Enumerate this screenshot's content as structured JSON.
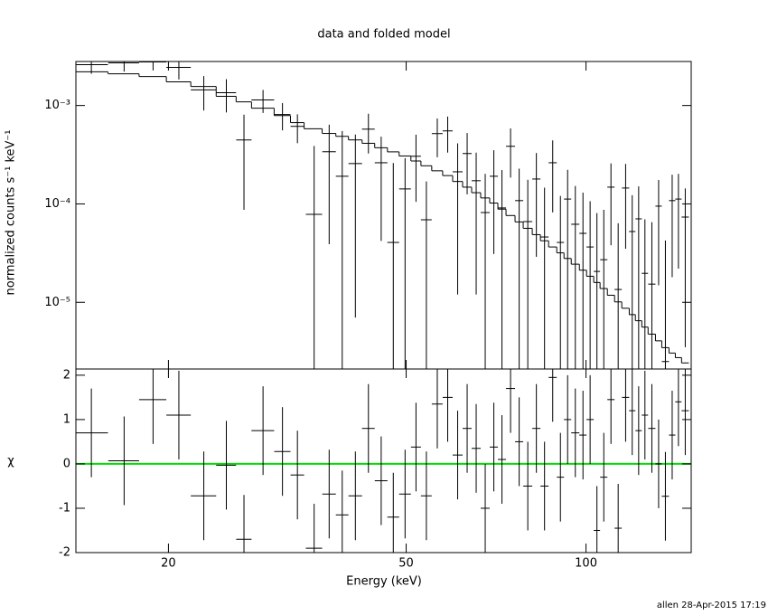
{
  "chart_data": [
    {
      "type": "errorbar",
      "title": "data and folded model",
      "ylabel": "normalized counts s⁻¹ keV⁻¹",
      "xscale": "log",
      "yscale": "log",
      "xlim": [
        14,
        150
      ],
      "ylim": [
        2.1e-06,
        0.0028
      ],
      "yticks": [
        {
          "value": 0.001,
          "label": "10⁻³"
        },
        {
          "value": 0.0001,
          "label": "10⁻⁴"
        },
        {
          "value": 1e-05,
          "label": "10⁻⁵"
        }
      ],
      "color": "#000000",
      "model_color": "#000000",
      "x": [
        14.86,
        16.86,
        18.85,
        20.82,
        22.92,
        25.0,
        26.76,
        28.8,
        31.04,
        32.88,
        35.07,
        37.16,
        39.08,
        41.11,
        43.23,
        45.41,
        47.58,
        49.79,
        51.93,
        54.05,
        56.37,
        58.68,
        60.98,
        63.25,
        65.49,
        67.81,
        70.1,
        72.33,
        74.77,
        77.29,
        79.9,
        82.59,
        85.23,
        87.96,
        90.61,
        93.16,
        95.97,
        98.84,
        101.6,
        104.3,
        107.1,
        110.1,
        113.2,
        116.5,
        119.5,
        122.5,
        125.5,
        128.9,
        132.3,
        135.8,
        139.4,
        142.8,
        146.6
      ],
      "xerr": [
        0.98,
        1.0,
        0.99,
        0.98,
        1.12,
        0.96,
        0.79,
        1.26,
        0.97,
        0.86,
        1.1,
        0.97,
        0.95,
        1.08,
        1.06,
        1.11,
        1.08,
        1.13,
        1.0,
        1.13,
        1.18,
        1.13,
        1.17,
        1.1,
        1.14,
        1.18,
        1.1,
        1.14,
        1.3,
        1.21,
        1.39,
        1.3,
        1.34,
        1.38,
        1.26,
        1.3,
        1.51,
        1.38,
        1.42,
        1.27,
        1.49,
        1.54,
        1.58,
        1.63,
        1.46,
        1.5,
        1.53,
        1.8,
        1.62,
        1.9,
        1.7,
        1.74,
        2.05
      ],
      "values": [
        0.0026,
        0.00271,
        0.00277,
        0.00244,
        0.00144,
        0.00135,
        0.000447,
        0.00114,
        0.000809,
        0.000614,
        7.83e-05,
        0.000339,
        0.000191,
        0.000257,
        0.000575,
        0.000262,
        4.06e-05,
        0.000142,
        0.000305,
        6.9e-05,
        0.000518,
        0.000552,
        0.000212,
        0.000325,
        0.000172,
        8.17e-05,
        0.000191,
        9.1e-05,
        0.000385,
        0.000108,
        6.61e-05,
        0.000179,
        4.61e-05,
        0.000262,
        4.06e-05,
        0.000112,
        6.21e-05,
        5.02e-05,
        3.65e-05,
        2.06e-05,
        2.71e-05,
        0.000148,
        1.35e-05,
        0.000145,
        5.24e-05,
        7.05e-05,
        1.97e-05,
        1.53e-05,
        9.49e-05,
        2.5e-06,
        0.000108,
        0.000112,
        7.35e-05
      ],
      "yerr": [
        0.0005,
        0.0005,
        0.0005,
        0.0006,
        0.00055,
        0.0005,
        0.00036,
        0.0003,
        0.00025,
        0.0002,
        0.00031,
        0.0003,
        0.00036,
        0.00025,
        0.00025,
        0.00022,
        0.00022,
        0.00015,
        0.0002,
        0.0001,
        0.00022,
        0.00022,
        0.0002,
        0.0002,
        0.00016,
        0.00012,
        0.00016,
        0.00013,
        0.0002,
        0.00012,
        0.00011,
        0.00015,
        0.0001,
        0.00018,
        8e-05,
        0.00011,
        9e-05,
        8e-05,
        7e-05,
        6e-05,
        6e-05,
        0.00011,
        5e-05,
        0.00011,
        7e-05,
        8e-05,
        5e-05,
        5e-05,
        8e-05,
        4e-05,
        9e-05,
        9e-05,
        7e-05
      ],
      "model": [
        0.0022,
        0.0021,
        0.00197,
        0.00174,
        0.00156,
        0.00124,
        0.00109,
        0.00094,
        0.00079,
        0.00067,
        0.00058,
        0.00052,
        0.000486,
        0.000447,
        0.000413,
        0.000372,
        0.000338,
        0.000307,
        0.000273,
        0.000244,
        0.000217,
        0.000194,
        0.000169,
        0.000148,
        0.00013,
        0.000115,
        0.000102,
        8.85e-05,
        7.62e-05,
        6.56e-05,
        5.65e-05,
        4.87e-05,
        4.22e-05,
        3.65e-05,
        3.18e-05,
        2.79e-05,
        2.44e-05,
        2.12e-05,
        1.84e-05,
        1.59e-05,
        1.38e-05,
        1.18e-05,
        1.01e-05,
        8.7e-06,
        7.5e-06,
        6.5e-06,
        5.6e-06,
        4.75e-06,
        4.06e-06,
        3.46e-06,
        3.05e-06,
        2.74e-06,
        2.42e-06
      ]
    },
    {
      "type": "residual",
      "ylabel": "χ",
      "xlabel": "Energy (keV)",
      "xscale": "log",
      "xlim": [
        14,
        150
      ],
      "xticks": [
        20,
        50,
        100
      ],
      "ylim": [
        -2,
        2.14
      ],
      "yticks": [
        -2,
        -1,
        0,
        1,
        2
      ],
      "color": "#000000",
      "reference_line": 0,
      "reference_color": "#00dd00",
      "values": [
        0.7,
        0.07,
        1.45,
        1.1,
        -0.72,
        -0.03,
        -1.7,
        0.75,
        0.28,
        -0.25,
        -1.9,
        -0.68,
        -1.15,
        -0.72,
        0.8,
        -0.38,
        -1.2,
        -0.68,
        0.38,
        -0.72,
        1.35,
        1.5,
        0.2,
        0.8,
        0.35,
        -1.0,
        0.38,
        0.1,
        1.7,
        0.5,
        -0.5,
        0.8,
        -0.5,
        1.95,
        -0.3,
        1.0,
        0.7,
        0.65,
        1.0,
        -1.5,
        -0.3,
        1.45,
        -1.45,
        1.5,
        1.2,
        0.75,
        1.1,
        0.8,
        0.0,
        -0.73,
        0.65,
        1.4,
        1.2
      ],
      "yerr": [
        1,
        1,
        1,
        1,
        1,
        1,
        1,
        1,
        1,
        1,
        1,
        1,
        1,
        1,
        1,
        1,
        1,
        1,
        1,
        1,
        1,
        1,
        1,
        1,
        1,
        1,
        1,
        1,
        1,
        1,
        1,
        1,
        1,
        1,
        1,
        1,
        1,
        1,
        1,
        1,
        1,
        1,
        1,
        1,
        1,
        1,
        1,
        1,
        1,
        1,
        1,
        1,
        1
      ]
    }
  ],
  "footer": "allen 28-Apr-2015 17:19"
}
